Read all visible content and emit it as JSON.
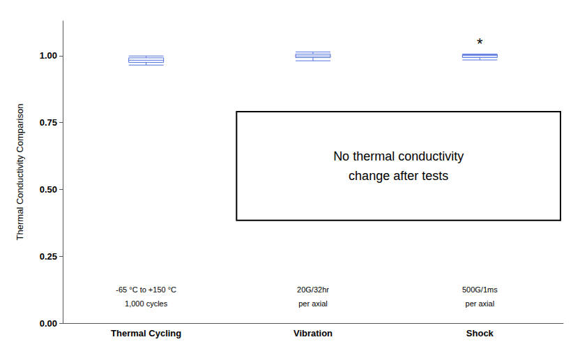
{
  "chart_data": {
    "type": "boxplot",
    "categories": [
      "Thermal Cycling",
      "Vibration",
      "Shock"
    ],
    "boxes": [
      {
        "whisker_low": 0.965,
        "q1": 0.975,
        "median": 0.983,
        "q3": 0.992,
        "whisker_high": 0.999
      },
      {
        "whisker_low": 0.981,
        "q1": 0.993,
        "median": 0.999,
        "q3": 1.006,
        "whisker_high": 1.014
      },
      {
        "whisker_low": 0.984,
        "q1": 0.993,
        "median": 1.0,
        "q3": 1.004,
        "whisker_high": 1.006
      }
    ],
    "ylabel": "Thermal Conductivity Comparison",
    "ylim": [
      0.0,
      1.13
    ],
    "yticks": [
      {
        "value": 0.0,
        "label": "0.00"
      },
      0.25,
      {
        "value": 0.5,
        "label": "0.50"
      },
      0.75,
      {
        "value": 1.0,
        "label": "1.00"
      }
    ],
    "grid": false,
    "annotation": "No thermal conductivity\nchange after tests",
    "star_annotations": [
      {
        "category": "Shock",
        "text": "*"
      }
    ],
    "sub_labels": [
      [
        "-65 °C to +150 °C",
        "1,000 cycles"
      ],
      [
        "20G/32hr",
        "per axial"
      ],
      [
        "500G/1ms",
        "per axial"
      ]
    ]
  }
}
